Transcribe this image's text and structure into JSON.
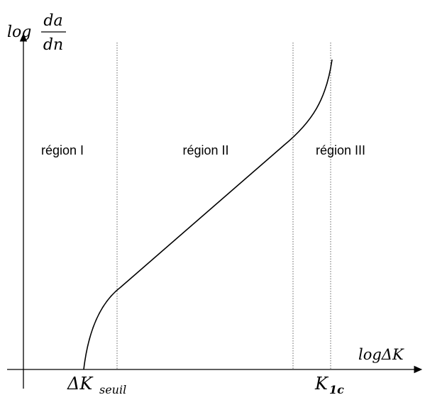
{
  "axes": {
    "y_label": {
      "prefix": "log",
      "numerator": "da",
      "denominator": "dn"
    },
    "x_label": "logΔK"
  },
  "regions": [
    "région I",
    "région II",
    "région III"
  ],
  "markers": [
    {
      "symbol": "ΔK",
      "subscript": "seuil"
    },
    {
      "symbol": "K",
      "subscript": "1c"
    }
  ]
}
